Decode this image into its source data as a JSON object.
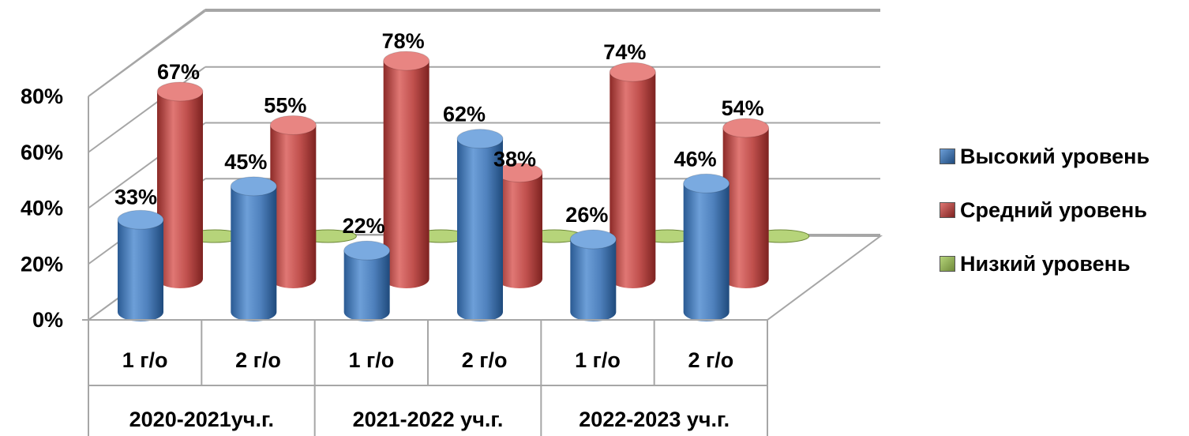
{
  "chart_data": {
    "type": "bar",
    "variant": "3d-cylinder",
    "title": "",
    "xlabel": "",
    "ylabel": "",
    "ylim": [
      0,
      0.8
    ],
    "yticks": [
      "0%",
      "20%",
      "40%",
      "60%",
      "80%"
    ],
    "grid": true,
    "legend_position": "right",
    "groups": [
      {
        "label": "2020-2021уч.г.",
        "categories": [
          "1 г/о",
          "2 г/о"
        ]
      },
      {
        "label": "2021-2022 уч.г.",
        "categories": [
          "1 г/о",
          "2 г/о"
        ]
      },
      {
        "label": "2022-2023 уч.г.",
        "categories": [
          "1 г/о",
          "2 г/о"
        ]
      }
    ],
    "categories": [
      "1 г/о",
      "2 г/о",
      "1 г/о",
      "2 г/о",
      "1 г/о",
      "2 г/о"
    ],
    "series": [
      {
        "name": "Высокий уровень",
        "color": "#4f81bd",
        "values": [
          0.33,
          0.45,
          0.22,
          0.62,
          0.26,
          0.46
        ],
        "labels": [
          "33%",
          "45%",
          "22%",
          "62%",
          "26%",
          "46%"
        ]
      },
      {
        "name": "Средний уровень",
        "color": "#c0504d",
        "values": [
          0.67,
          0.55,
          0.78,
          0.38,
          0.74,
          0.54
        ],
        "labels": [
          "67%",
          "55%",
          "78%",
          "38%",
          "74%",
          "54%"
        ]
      },
      {
        "name": "Низкий уровень",
        "color": "#9bbb59",
        "values": [
          0,
          0,
          0,
          0,
          0,
          0
        ]
      }
    ]
  }
}
